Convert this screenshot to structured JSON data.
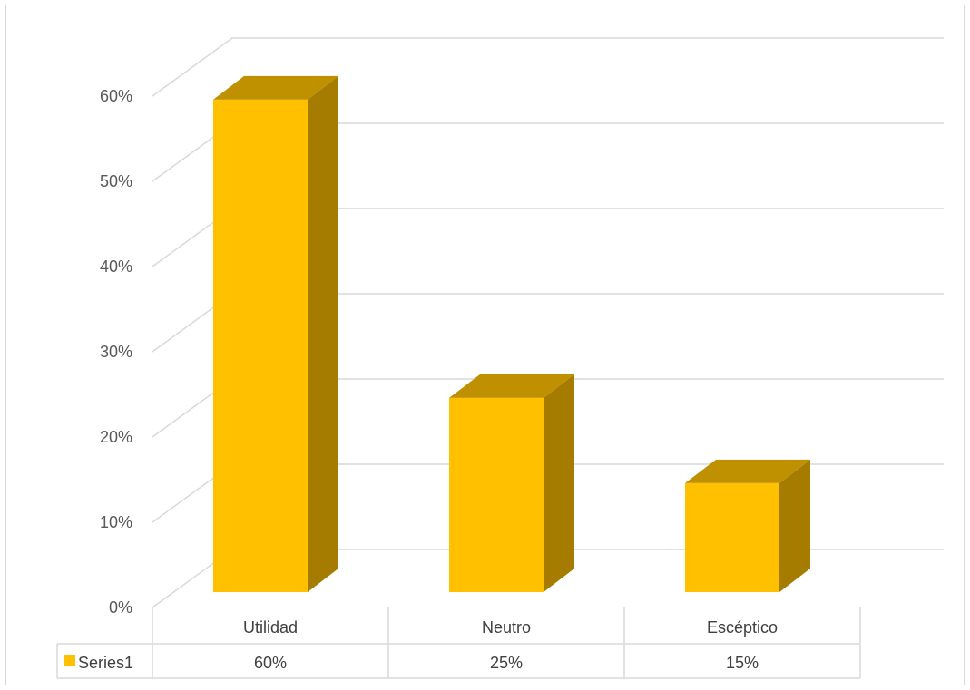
{
  "chart_data": {
    "type": "bar",
    "categories": [
      "Utilidad",
      "Neutro",
      "Escéptico"
    ],
    "series": [
      {
        "name": "Series1",
        "values": [
          0.6,
          0.25,
          0.15
        ],
        "labels": [
          "60%",
          "25%",
          "15%"
        ],
        "color": "#FFC000"
      }
    ],
    "ylim": [
      0,
      0.6
    ],
    "yticks": [
      "0%",
      "10%",
      "20%",
      "30%",
      "40%",
      "50%",
      "60%"
    ],
    "grid": true,
    "legend": "data-table",
    "style": "3d-column",
    "colors": {
      "front": "#FFC000",
      "top": "#BF9000",
      "side": "#A67C00",
      "grid": "#d9d9d9",
      "table_border": "#d9d9d9"
    }
  }
}
